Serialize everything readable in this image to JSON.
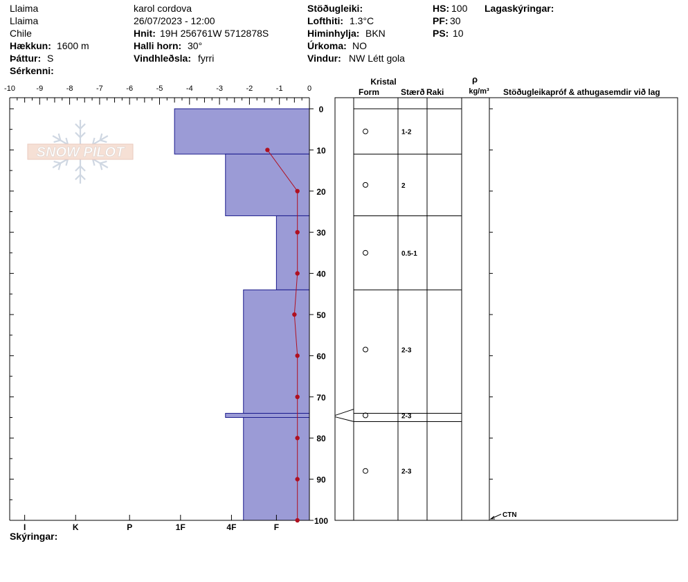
{
  "header": {
    "location1": "Llaima",
    "location2": "Llaima",
    "country": "Chile",
    "elevation_label": "Hækkun:",
    "elevation_value": "1600 m",
    "aspect_label": "Þáttur:",
    "aspect_value": "S",
    "special_label": "Sérkenni:",
    "observer": "karol cordova",
    "datetime": "26/07/2023 - 12:00",
    "coords_label": "Hnit:",
    "coords_value": "19H 256761W 5712878S",
    "slope_label": "Halli horn:",
    "slope_value": "30°",
    "wind_loading_label": "Vindhleðsla:",
    "wind_loading_value": "fyrri",
    "stability_label": "Stöðugleiki:",
    "air_temp_label": "Lofthiti:",
    "air_temp_value": "1.3°C",
    "sky_label": "Himinhylja:",
    "sky_value": "BKN",
    "precip_label": "Úrkoma:",
    "precip_value": "NO",
    "wind_label": "Vindur:",
    "wind_value": "NW Létt gola",
    "hs_label": "HS:",
    "hs_value": "100",
    "pf_label": "PF:",
    "pf_value": "30",
    "ps_label": "PS:",
    "ps_value": "10",
    "legend_label": "Lagaskýringar:"
  },
  "footer": {
    "notes_label": "Skýringar:"
  },
  "logo": {
    "text": "SNOW PILOT"
  },
  "table_headers": {
    "crystal": "Kristal",
    "form": "Form",
    "size": "Stærð",
    "moisture": "Raki",
    "rho": "ρ",
    "density_unit": "kg/m³",
    "comments": "Stöðugleikapróf & athugasemdir við lag"
  },
  "chart_data": {
    "type": "snow_profile",
    "temperature_axis": {
      "ticks": [
        -10,
        -9,
        -8,
        -7,
        -6,
        -5,
        -4,
        -3,
        -2,
        -1,
        0
      ],
      "range": [
        -10,
        0
      ]
    },
    "depth_axis": {
      "ticks": [
        0,
        10,
        20,
        30,
        40,
        50,
        60,
        70,
        80,
        90,
        100
      ],
      "range": [
        0,
        100
      ]
    },
    "hardness_ticks": [
      "I",
      "K",
      "P",
      "1F",
      "4F",
      "F"
    ],
    "layers": [
      {
        "top": 0,
        "bottom": 11,
        "hardness_value": -4.5,
        "grain_form": "o",
        "grain_size": "1-2"
      },
      {
        "top": 11,
        "bottom": 26,
        "hardness_value": -2.8,
        "grain_form": "o",
        "grain_size": "2"
      },
      {
        "top": 26,
        "bottom": 44,
        "hardness_value": -1.1,
        "grain_form": "o",
        "grain_size": "0.5-1"
      },
      {
        "top": 44,
        "bottom": 74,
        "hardness_value": -2.2,
        "grain_form": "o",
        "grain_size": "2-3"
      },
      {
        "top": 74,
        "bottom": 75,
        "hardness_value": -2.8,
        "grain_form": "o",
        "grain_size": "2-3"
      },
      {
        "top": 75,
        "bottom": 100,
        "hardness_value": -2.2,
        "grain_form": "o",
        "grain_size": "2-3"
      }
    ],
    "temperature_profile": [
      {
        "depth": 10,
        "temp": -1.4
      },
      {
        "depth": 20,
        "temp": -0.4
      },
      {
        "depth": 30,
        "temp": -0.4
      },
      {
        "depth": 40,
        "temp": -0.4
      },
      {
        "depth": 50,
        "temp": -0.5
      },
      {
        "depth": 60,
        "temp": -0.4
      },
      {
        "depth": 70,
        "temp": -0.4
      },
      {
        "depth": 80,
        "temp": -0.4
      },
      {
        "depth": 90,
        "temp": -0.4
      },
      {
        "depth": 100,
        "temp": -0.4
      }
    ],
    "stability_tests": [
      {
        "depth": 100,
        "label": "CTN"
      }
    ],
    "colors": {
      "layer_fill": "#9b9bd6",
      "layer_stroke": "#1a1a8c",
      "temp_line": "#b01020"
    }
  }
}
